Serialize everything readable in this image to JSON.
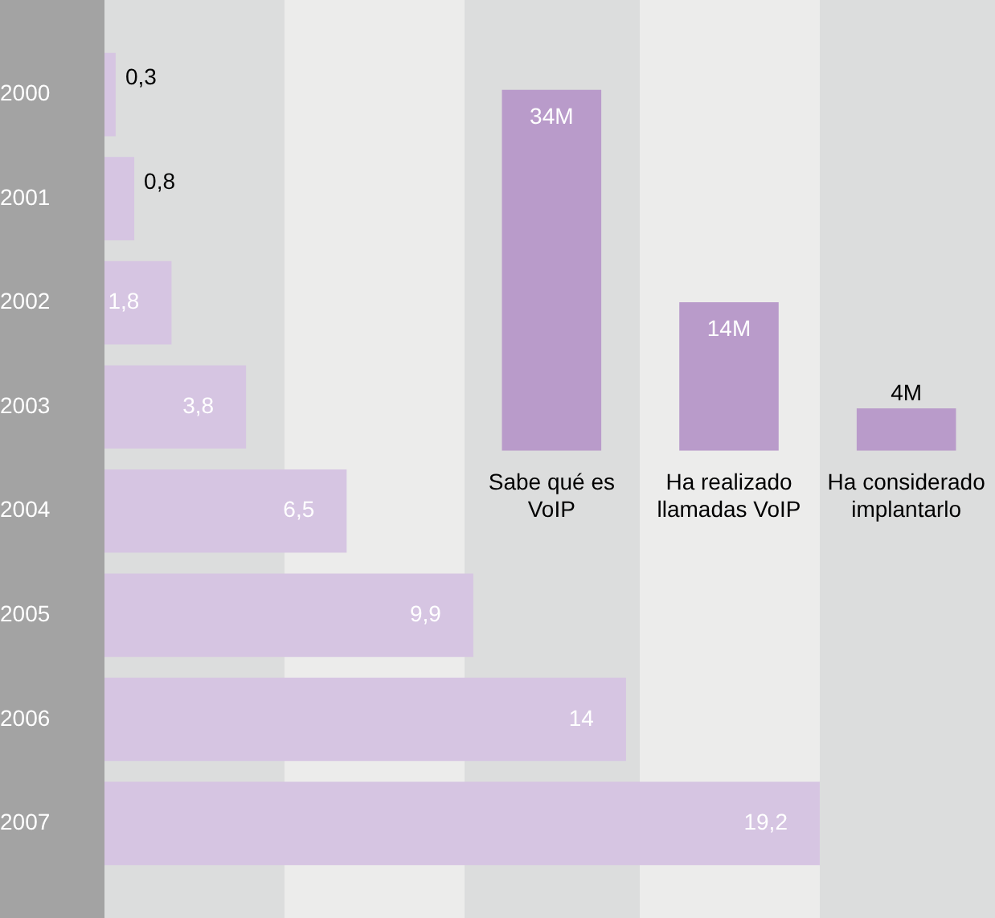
{
  "chart_data": [
    {
      "type": "bar",
      "orientation": "horizontal",
      "categories": [
        "2000",
        "2001",
        "2002",
        "2003",
        "2004",
        "2005",
        "2006",
        "2007"
      ],
      "values": [
        0.3,
        0.8,
        1.8,
        3.8,
        6.5,
        9.9,
        14,
        19.2
      ],
      "value_labels": [
        "0,3",
        "0,8",
        "1,8",
        "3,8",
        "6,5",
        "9,9",
        "14",
        "19,2"
      ],
      "color": "#d6c5e2",
      "tick_labels": "y"
    },
    {
      "type": "bar",
      "categories": [
        "Sabe qué es VoIP",
        "Ha realizado llamadas VoIP",
        "Ha considerado implantarlo"
      ],
      "values": [
        34,
        14,
        4
      ],
      "value_labels": [
        "34M",
        "14M",
        "4M"
      ],
      "color": "#b99bca",
      "tick_labels": "x"
    }
  ]
}
